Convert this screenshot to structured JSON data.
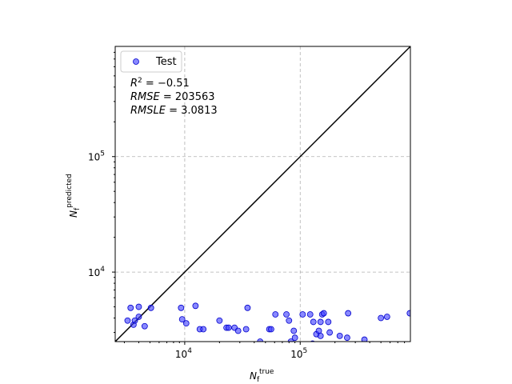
{
  "chart_data": {
    "type": "scatter",
    "xscale": "log",
    "yscale": "log",
    "xlim": [
      2500,
      900000
    ],
    "ylim": [
      2500,
      900000
    ],
    "x_ticks": [
      10000,
      100000
    ],
    "x_tick_labels": [
      "10^4",
      "10^5"
    ],
    "y_ticks": [
      10000,
      100000
    ],
    "y_tick_labels": [
      "10^4",
      "10^5"
    ],
    "xlabel": {
      "base": "N",
      "sub": "f",
      "sup": "true"
    },
    "ylabel": {
      "base": "N",
      "sub": "f",
      "sup": "predicted"
    },
    "grid": true,
    "legend_position": "top-left",
    "reference_line": "y = x",
    "annotations": [
      {
        "name": "R",
        "sup": "2",
        "value": "= −0.51"
      },
      {
        "name": "RMSE",
        "value": "= 203563"
      },
      {
        "name": "RMSLE",
        "value": "= 3.0813"
      }
    ],
    "series": [
      {
        "name": "Test",
        "color": "#3b3bff",
        "points": [
          [
            3200,
            3800
          ],
          [
            3400,
            4900
          ],
          [
            3600,
            3500
          ],
          [
            3700,
            3800
          ],
          [
            4000,
            5000
          ],
          [
            4000,
            4100
          ],
          [
            4500,
            3400
          ],
          [
            5100,
            4900
          ],
          [
            9300,
            4900
          ],
          [
            9500,
            3900
          ],
          [
            10300,
            3600
          ],
          [
            12400,
            5100
          ],
          [
            13500,
            3200
          ],
          [
            14500,
            3200
          ],
          [
            20000,
            3800
          ],
          [
            23000,
            3300
          ],
          [
            24000,
            3300
          ],
          [
            27000,
            3300
          ],
          [
            29000,
            3100
          ],
          [
            34000,
            3200
          ],
          [
            35000,
            4900
          ],
          [
            45000,
            2500
          ],
          [
            54000,
            3200
          ],
          [
            56000,
            3200
          ],
          [
            61000,
            4300
          ],
          [
            76000,
            4300
          ],
          [
            80000,
            3800
          ],
          [
            83000,
            2500
          ],
          [
            90000,
            2700
          ],
          [
            88000,
            3100
          ],
          [
            105000,
            4300
          ],
          [
            122000,
            4300
          ],
          [
            128000,
            2400
          ],
          [
            130000,
            3700
          ],
          [
            138000,
            2900
          ],
          [
            145000,
            3100
          ],
          [
            150000,
            2800
          ],
          [
            150000,
            3700
          ],
          [
            155000,
            4300
          ],
          [
            160000,
            4400
          ],
          [
            175000,
            3700
          ],
          [
            180000,
            3000
          ],
          [
            220000,
            2800
          ],
          [
            255000,
            2700
          ],
          [
            260000,
            4400
          ],
          [
            360000,
            2600
          ],
          [
            500000,
            4000
          ],
          [
            565000,
            4100
          ],
          [
            890000,
            4400
          ]
        ]
      }
    ]
  }
}
